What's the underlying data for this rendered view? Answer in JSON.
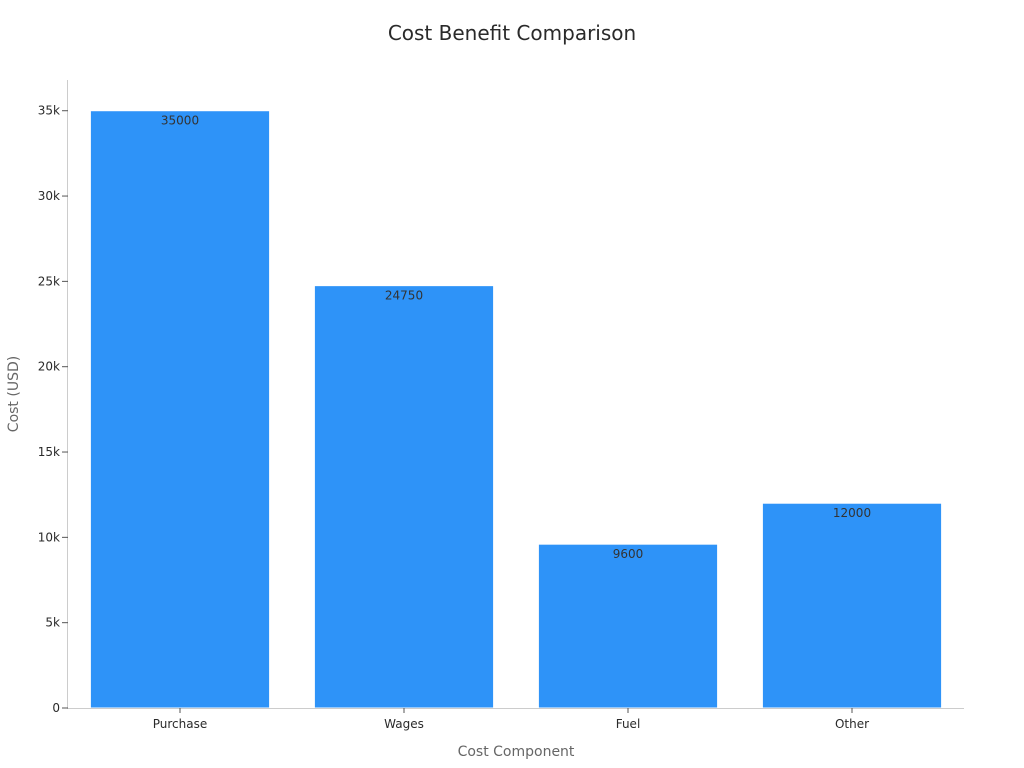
{
  "chart_data": {
    "type": "bar",
    "title": "Cost Benefit Comparison",
    "xlabel": "Cost Component",
    "ylabel": "Cost (USD)",
    "categories": [
      "Purchase",
      "Wages",
      "Fuel",
      "Other"
    ],
    "values": [
      35000,
      24750,
      9600,
      12000
    ],
    "data_labels": [
      "35000",
      "24750",
      "9600",
      "12000"
    ],
    "ylim": [
      0,
      36800
    ],
    "yticks": [
      0,
      5000,
      10000,
      15000,
      20000,
      25000,
      30000,
      35000
    ],
    "ytick_labels": [
      "0",
      "5k",
      "10k",
      "15k",
      "20k",
      "25k",
      "30k",
      "35k"
    ],
    "bar_color": "#2e93f8",
    "grid": false,
    "legend": "none"
  }
}
